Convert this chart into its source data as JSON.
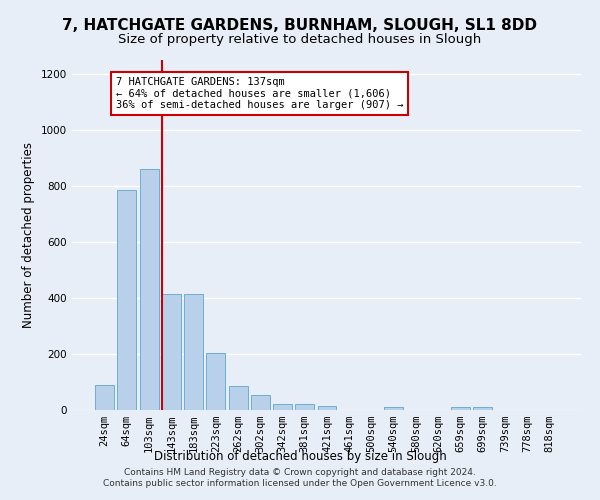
{
  "title": "7, HATCHGATE GARDENS, BURNHAM, SLOUGH, SL1 8DD",
  "subtitle": "Size of property relative to detached houses in Slough",
  "xlabel": "Distribution of detached houses by size in Slough",
  "ylabel": "Number of detached properties",
  "categories": [
    "24sqm",
    "64sqm",
    "103sqm",
    "143sqm",
    "183sqm",
    "223sqm",
    "262sqm",
    "302sqm",
    "342sqm",
    "381sqm",
    "421sqm",
    "461sqm",
    "500sqm",
    "540sqm",
    "580sqm",
    "620sqm",
    "659sqm",
    "699sqm",
    "739sqm",
    "778sqm",
    "818sqm"
  ],
  "values": [
    90,
    785,
    860,
    415,
    415,
    202,
    85,
    55,
    22,
    22,
    14,
    0,
    0,
    10,
    0,
    0,
    12,
    12,
    0,
    0,
    0
  ],
  "bar_color": "#b8d0ea",
  "bar_edge_color": "#6aaed6",
  "vline_color": "#cc0000",
  "annotation_text": "7 HATCHGATE GARDENS: 137sqm\n← 64% of detached houses are smaller (1,606)\n36% of semi-detached houses are larger (907) →",
  "annotation_box_color": "#ffffff",
  "annotation_box_edge_color": "#cc0000",
  "ylim": [
    0,
    1250
  ],
  "yticks": [
    0,
    200,
    400,
    600,
    800,
    1000,
    1200
  ],
  "footer": "Contains HM Land Registry data © Crown copyright and database right 2024.\nContains public sector information licensed under the Open Government Licence v3.0.",
  "background_color": "#e8eef7",
  "grid_color": "#ffffff",
  "title_fontsize": 11,
  "subtitle_fontsize": 9.5,
  "axis_label_fontsize": 8.5,
  "tick_fontsize": 7.5,
  "annotation_fontsize": 7.5,
  "footer_fontsize": 6.5
}
